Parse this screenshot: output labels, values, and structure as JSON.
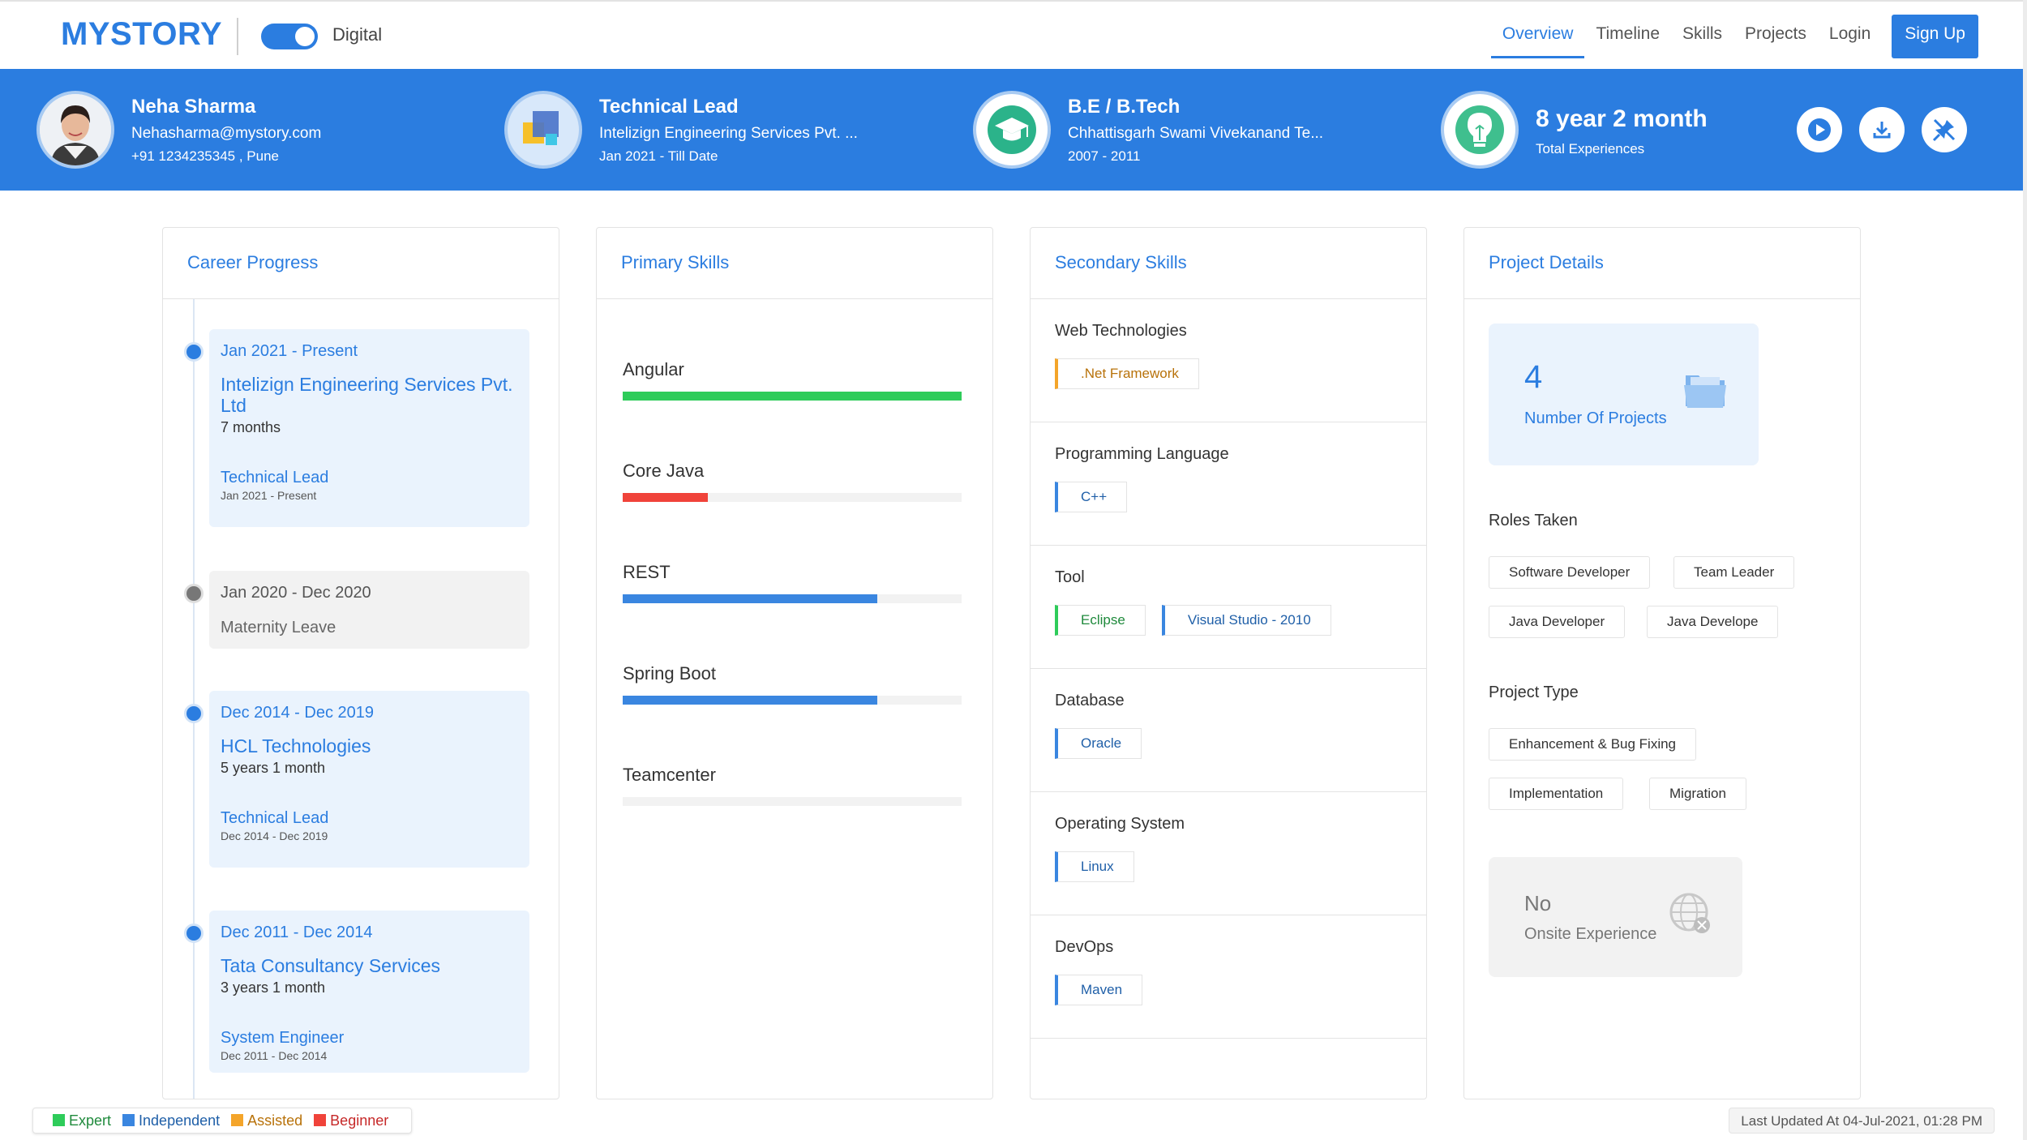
{
  "header": {
    "logo": "MYSTORY",
    "toggle_label": "Digital",
    "nav": [
      "Overview",
      "Timeline",
      "Skills",
      "Projects",
      "Login"
    ],
    "signup": "Sign Up",
    "accent": "#2b7de0"
  },
  "banner": {
    "profile": {
      "name": "Neha Sharma",
      "email": "Nehasharma@mystory.com",
      "phone_location": "+91 1234235345 , Pune"
    },
    "job": {
      "title": "Technical Lead",
      "company": "Intelizign Engineering Services Pvt. ...",
      "period": "Jan 2021 - Till Date"
    },
    "education": {
      "degree": "B.E / B.Tech",
      "institute": "Chhattisgarh Swami Vivekanand Te...",
      "period": "2007 - 2011"
    },
    "experience": {
      "value": "8 year 2 month",
      "label": "Total Experiences"
    },
    "buttons": [
      "play-icon",
      "download-icon",
      "pin-off-icon"
    ]
  },
  "career": {
    "title": "Career Progress",
    "entries": [
      {
        "range": "Jan 2021 - Present",
        "company": "Intelizign Engineering Services Pvt. Ltd",
        "duration": "7 months",
        "role": "Technical Lead",
        "role_range": "Jan 2021 - Present"
      },
      {
        "range": "Jan 2020 - Dec 2020",
        "note": "Maternity Leave"
      },
      {
        "range": "Dec 2014 - Dec 2019",
        "company": "HCL Technologies",
        "duration": "5 years 1 month",
        "role": "Technical Lead",
        "role_range": "Dec 2014 - Dec 2019"
      },
      {
        "range": "Dec 2011 - Dec 2014",
        "company": "Tata Consultancy Services",
        "duration": "3 years 1 month",
        "role": "System Engineer",
        "role_range": "Dec 2011 - Dec 2014"
      }
    ]
  },
  "primary": {
    "title": "Primary Skills",
    "skills": [
      {
        "name": "Angular",
        "level": 1.0,
        "color": "#2ecc5a"
      },
      {
        "name": "Core Java",
        "level": 0.25,
        "color": "#f0433a"
      },
      {
        "name": "REST",
        "level": 0.75,
        "color": "#3a86e0"
      },
      {
        "name": "Spring Boot",
        "level": 0.75,
        "color": "#3a86e0"
      },
      {
        "name": "Teamcenter",
        "level": 0.0,
        "color": "#3a86e0"
      }
    ]
  },
  "secondary": {
    "title": "Secondary Skills",
    "groups": [
      {
        "name": "Web Technologies",
        "tags": [
          {
            "label": ".Net Framework",
            "color": "#f4a52a",
            "text": "#b8720a"
          }
        ]
      },
      {
        "name": "Programming Language",
        "tags": [
          {
            "label": "C++",
            "color": "#3a86e0",
            "text": "#1f5fa8"
          }
        ]
      },
      {
        "name": "Tool",
        "tags": [
          {
            "label": "Eclipse",
            "color": "#2ecc5a",
            "text": "#1f8a3c"
          },
          {
            "label": "Visual Studio - 2010",
            "color": "#3a86e0",
            "text": "#1f5fa8"
          }
        ]
      },
      {
        "name": "Database",
        "tags": [
          {
            "label": "Oracle",
            "color": "#3a86e0",
            "text": "#1f5fa8"
          }
        ]
      },
      {
        "name": "Operating System",
        "tags": [
          {
            "label": "Linux",
            "color": "#3a86e0",
            "text": "#1f5fa8"
          }
        ]
      },
      {
        "name": "DevOps",
        "tags": [
          {
            "label": "Maven",
            "color": "#3a86e0",
            "text": "#1f5fa8"
          }
        ]
      }
    ]
  },
  "projects": {
    "title": "Project Details",
    "count": "4",
    "count_label": "Number Of Projects",
    "roles_title": "Roles Taken",
    "roles": [
      "Software Developer",
      "Team Leader",
      "Java Developer",
      "Java Develope"
    ],
    "types_title": "Project Type",
    "types": [
      "Enhancement & Bug Fixing",
      "Implementation",
      "Migration"
    ],
    "onsite_value": "No",
    "onsite_label": "Onsite Experience"
  },
  "legend": [
    {
      "label": "Expert",
      "color": "#2ecc5a"
    },
    {
      "label": "Independent",
      "color": "#3a86e0"
    },
    {
      "label": "Assisted",
      "color": "#f4a52a"
    },
    {
      "label": "Beginner",
      "color": "#f0433a"
    }
  ],
  "last_updated": "Last Updated At 04-Jul-2021, 01:28 PM"
}
